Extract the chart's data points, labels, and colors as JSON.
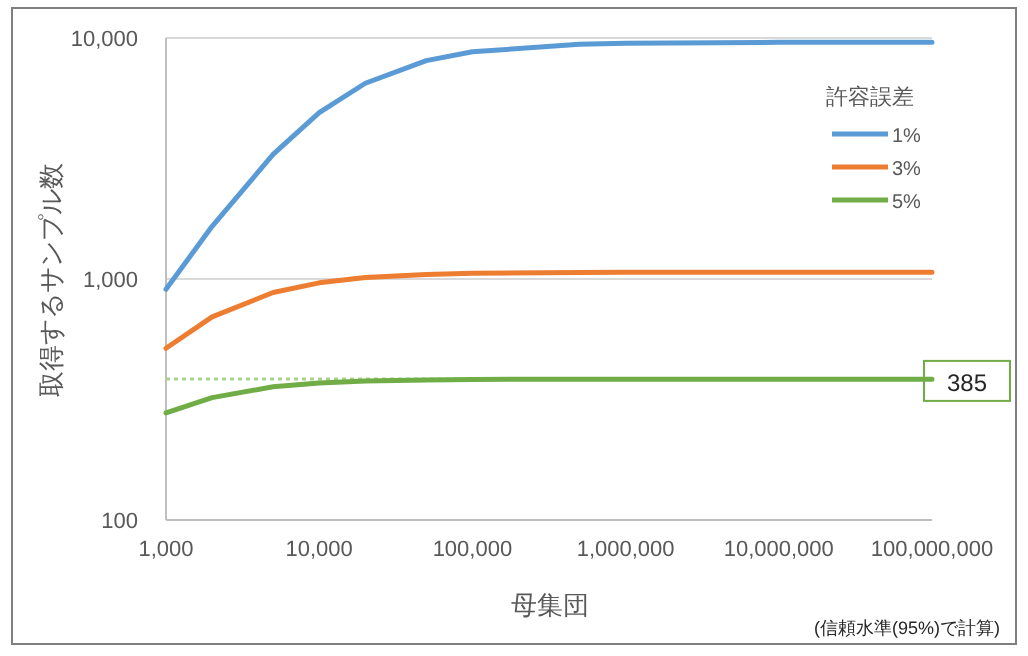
{
  "chart_data": {
    "type": "line",
    "xlabel": "母集団",
    "ylabel": "取得するサンプル数",
    "legend_title": "許容誤差",
    "log": "xy",
    "grid": "y",
    "legend": "right",
    "marker": "none",
    "line_style": "solid",
    "x": [
      1000,
      2000,
      5000,
      10000,
      20000,
      50000,
      100000,
      500000,
      1000000,
      10000000,
      100000000
    ],
    "series": [
      {
        "name": "1%",
        "color": "#5b9bd5",
        "values": [
          906,
          1655,
          3288,
          4899,
          6489,
          8057,
          8763,
          9423,
          9513,
          9595,
          9603
        ]
      },
      {
        "name": "3%",
        "color": "#ed7d31",
        "values": [
          516,
          696,
          879,
          964,
          1014,
          1045,
          1056,
          1065,
          1066,
          1067,
          1067
        ]
      },
      {
        "name": "5%",
        "color": "#70ad47",
        "values": [
          278,
          322,
          357,
          370,
          377,
          381,
          383,
          384,
          384,
          384,
          384
        ]
      }
    ],
    "xlim": [
      1000,
      100000000
    ],
    "ylim": [
      100,
      10000
    ],
    "xticks": [
      {
        "value": 1000,
        "label": "1,000"
      },
      {
        "value": 10000,
        "label": "10,000"
      },
      {
        "value": 100000,
        "label": "100,000"
      },
      {
        "value": 1000000,
        "label": "1,000,000"
      },
      {
        "value": 10000000,
        "label": "10,000,000"
      },
      {
        "value": 100000000,
        "label": "100,000,000"
      }
    ],
    "yticks": [
      {
        "value": 100,
        "label": "100"
      },
      {
        "value": 1000,
        "label": "1,000"
      },
      {
        "value": 10000,
        "label": "10,000"
      }
    ],
    "ref_lines": [
      {
        "axis": "y",
        "value": 385,
        "label": "385",
        "color": "#a9d18e",
        "line_style": "dotted"
      }
    ],
    "annotations": [
      "(信頼水準(95%)で計算)"
    ]
  }
}
